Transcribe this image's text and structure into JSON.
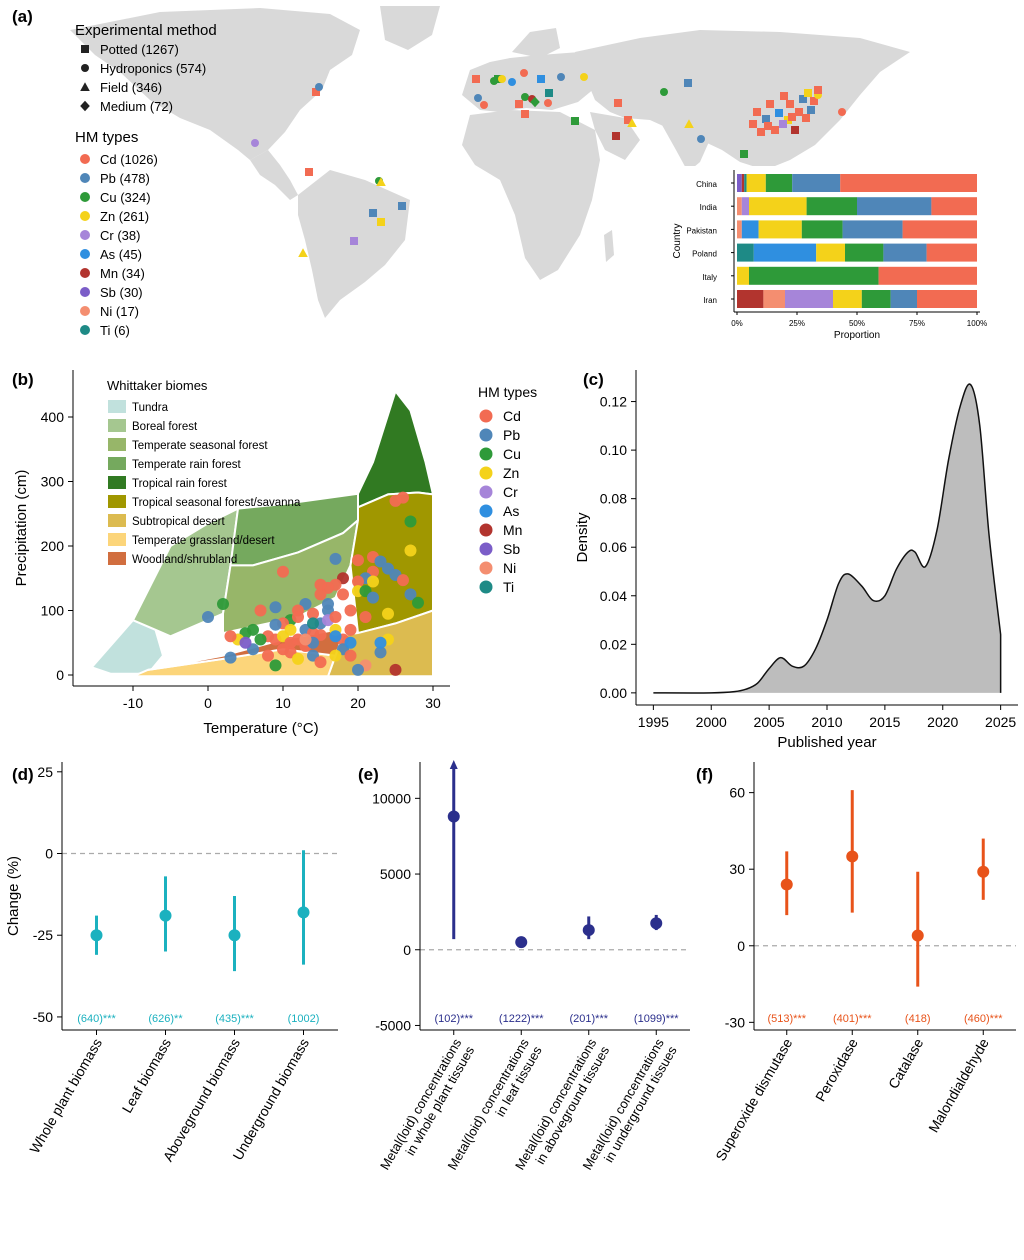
{
  "panels": {
    "a": "(a)",
    "b": "(b)",
    "c": "(c)",
    "d": "(d)",
    "e": "(e)",
    "f": "(f)"
  },
  "colors": {
    "Cd": "#F26B52",
    "Pb": "#4F86B8",
    "Cu": "#2E9A39",
    "Zn": "#F4D21A",
    "Cr": "#A685D9",
    "As": "#2F8FE0",
    "Mn": "#B2342E",
    "Sb": "#7B5DC8",
    "Ni": "#F48E70",
    "Ti": "#1E8A86",
    "land": "#d9d9d9",
    "teal": "#1BB1BF",
    "navy": "#2B2F8C",
    "orange": "#E8531A"
  },
  "map_legend": {
    "method_title": "Experimental method",
    "methods": [
      {
        "label": "Potted (1267)",
        "shape": "square"
      },
      {
        "label": "Hydroponics (574)",
        "shape": "circle"
      },
      {
        "label": "Field (346)",
        "shape": "triangle"
      },
      {
        "label": "Medium (72)",
        "shape": "diamond"
      }
    ],
    "hm_title": "HM types",
    "hm": [
      {
        "label": "Cd (1026)",
        "key": "Cd"
      },
      {
        "label": "Pb (478)",
        "key": "Pb"
      },
      {
        "label": "Cu (324)",
        "key": "Cu"
      },
      {
        "label": "Zn (261)",
        "key": "Zn"
      },
      {
        "label": "Cr (38)",
        "key": "Cr"
      },
      {
        "label": "As (45)",
        "key": "As"
      },
      {
        "label": "Mn (34)",
        "key": "Mn"
      },
      {
        "label": "Sb (30)",
        "key": "Sb"
      },
      {
        "label": "Ni (17)",
        "key": "Ni"
      },
      {
        "label": "Ti (6)",
        "key": "Ti"
      }
    ]
  },
  "biome_legend": {
    "title": "Whittaker biomes",
    "items": [
      {
        "label": "Tundra",
        "color": "#C1E1DD"
      },
      {
        "label": "Boreal forest",
        "color": "#A5C790"
      },
      {
        "label": "Temperate seasonal forest",
        "color": "#97B669"
      },
      {
        "label": "Temperate rain forest",
        "color": "#75A95E"
      },
      {
        "label": "Tropical rain forest",
        "color": "#317A22"
      },
      {
        "label": "Tropical seasonal forest/savanna",
        "color": "#A09700"
      },
      {
        "label": "Subtropical desert",
        "color": "#DCBB50"
      },
      {
        "label": "Temperate grassland/desert",
        "color": "#FCD57A"
      },
      {
        "label": "Woodland/shrubland",
        "color": "#D16E3F"
      }
    ]
  },
  "hm_legend_b": {
    "title": "HM types",
    "keys": [
      "Cd",
      "Pb",
      "Cu",
      "Zn",
      "Cr",
      "As",
      "Mn",
      "Sb",
      "Ni",
      "Ti"
    ]
  },
  "chart_data": [
    {
      "id": "a-inset",
      "type": "bar",
      "orientation": "horizontal-stacked",
      "xlabel": "Proportion",
      "ylabel": "Country",
      "xticks": [
        "0%",
        "25%",
        "50%",
        "75%",
        "100%"
      ],
      "categories": [
        "China",
        "India",
        "Pakistan",
        "Poland",
        "Italy",
        "Iran"
      ],
      "series": [
        {
          "name": "Sb",
          "values": [
            0.02,
            0,
            0,
            0,
            0,
            0
          ]
        },
        {
          "name": "Mn",
          "values": [
            0.01,
            0,
            0,
            0,
            0,
            0.11
          ]
        },
        {
          "name": "Ni",
          "values": [
            0,
            0.02,
            0.02,
            0,
            0,
            0.09
          ]
        },
        {
          "name": "Cr",
          "values": [
            0,
            0.03,
            0,
            0,
            0,
            0.2
          ]
        },
        {
          "name": "Ti",
          "values": [
            0.01,
            0,
            0,
            0.07,
            0,
            0
          ]
        },
        {
          "name": "As",
          "values": [
            0,
            0,
            0.07,
            0.26,
            0,
            0
          ]
        },
        {
          "name": "Zn",
          "values": [
            0.08,
            0.24,
            0.18,
            0.12,
            0.05,
            0.12
          ]
        },
        {
          "name": "Cu",
          "values": [
            0.11,
            0.21,
            0.17,
            0.16,
            0.54,
            0.12
          ]
        },
        {
          "name": "Pb",
          "values": [
            0.2,
            0.31,
            0.25,
            0.18,
            0,
            0.11
          ]
        },
        {
          "name": "Cd",
          "values": [
            0.57,
            0.19,
            0.31,
            0.21,
            0.41,
            0.25
          ]
        }
      ]
    },
    {
      "id": "b",
      "type": "scatter",
      "xlabel": "Temperature (°C)",
      "ylabel": "Precipitation (cm)",
      "xlim": [
        -16,
        30
      ],
      "ylim": [
        -5,
        440
      ],
      "xticks": [
        -10,
        0,
        10,
        20,
        30
      ],
      "yticks": [
        0,
        100,
        200,
        300,
        400
      ],
      "points": [
        [
          25,
          270,
          "Cd"
        ],
        [
          26,
          275,
          "Cd"
        ],
        [
          27,
          238,
          "Cu"
        ],
        [
          27,
          193,
          "Zn"
        ],
        [
          22,
          183,
          "Cd"
        ],
        [
          23,
          176,
          "Pb"
        ],
        [
          24,
          165,
          "Pb"
        ],
        [
          25,
          155,
          "Pb"
        ],
        [
          26,
          147,
          "Cd"
        ],
        [
          27,
          125,
          "Pb"
        ],
        [
          28,
          112,
          "Cu"
        ],
        [
          22,
          160,
          "Cd"
        ],
        [
          21,
          150,
          "Pb"
        ],
        [
          20,
          145,
          "Cd"
        ],
        [
          22,
          145,
          "Zn"
        ],
        [
          20,
          130,
          "Zn"
        ],
        [
          18,
          150,
          "Mn"
        ],
        [
          17,
          140,
          "Cd"
        ],
        [
          16,
          135,
          "Cd"
        ],
        [
          15,
          125,
          "Cd"
        ],
        [
          16,
          100,
          "Pb"
        ],
        [
          14,
          95,
          "Cd"
        ],
        [
          13,
          110,
          "Pb"
        ],
        [
          12,
          100,
          "Cd"
        ],
        [
          11,
          85,
          "Cu"
        ],
        [
          10,
          80,
          "Cd"
        ],
        [
          9,
          78,
          "Pb"
        ],
        [
          8,
          60,
          "Cd"
        ],
        [
          9,
          55,
          "Cd"
        ],
        [
          10,
          60,
          "Zn"
        ],
        [
          11,
          50,
          "Cd"
        ],
        [
          12,
          55,
          "Cd"
        ],
        [
          13,
          70,
          "Pb"
        ],
        [
          14,
          65,
          "Cd"
        ],
        [
          15,
          62,
          "Cd"
        ],
        [
          15,
          80,
          "Pb"
        ],
        [
          16,
          85,
          "Cr"
        ],
        [
          17,
          70,
          "Zn"
        ],
        [
          17,
          90,
          "Cd"
        ],
        [
          18,
          55,
          "Cd"
        ],
        [
          18,
          40,
          "Pb"
        ],
        [
          7,
          55,
          "Cu"
        ],
        [
          6,
          70,
          "Cu"
        ],
        [
          5,
          65,
          "Cu"
        ],
        [
          4,
          55,
          "Zn"
        ],
        [
          3,
          60,
          "Cd"
        ],
        [
          2,
          110,
          "Cu"
        ],
        [
          0,
          90,
          "Pb"
        ],
        [
          3,
          27,
          "Pb"
        ],
        [
          9,
          15,
          "Cu"
        ],
        [
          11,
          35,
          "Cd"
        ],
        [
          12,
          25,
          "Zn"
        ],
        [
          14,
          30,
          "Pb"
        ],
        [
          15,
          20,
          "Cd"
        ],
        [
          17,
          30,
          "Zn"
        ],
        [
          19,
          30,
          "Cd"
        ],
        [
          19,
          50,
          "As"
        ],
        [
          21,
          15,
          "Ni"
        ],
        [
          20,
          8,
          "Pb"
        ],
        [
          23,
          35,
          "Pb"
        ],
        [
          24,
          55,
          "Zn"
        ],
        [
          23,
          50,
          "As"
        ],
        [
          24,
          95,
          "Zn"
        ],
        [
          21,
          90,
          "Cd"
        ],
        [
          10,
          160,
          "Cd"
        ],
        [
          17,
          180,
          "Pb"
        ],
        [
          18,
          125,
          "Cd"
        ],
        [
          15,
          140,
          "Cd"
        ],
        [
          25,
          8,
          "Mn"
        ],
        [
          7,
          100,
          "Cd"
        ],
        [
          6,
          40,
          "Pb"
        ],
        [
          8,
          30,
          "Cd"
        ],
        [
          11,
          70,
          "Zn"
        ],
        [
          12,
          90,
          "Cd"
        ],
        [
          13,
          45,
          "Cd"
        ],
        [
          14,
          50,
          "Pb"
        ],
        [
          10,
          40,
          "Cd"
        ],
        [
          9,
          105,
          "Pb"
        ],
        [
          19,
          70,
          "Cd"
        ],
        [
          16,
          110,
          "Pb"
        ],
        [
          20,
          178,
          "Cd"
        ],
        [
          21,
          130,
          "Cu"
        ],
        [
          22,
          120,
          "Pb"
        ],
        [
          19,
          100,
          "Cd"
        ],
        [
          13,
          55,
          "Ni"
        ],
        [
          17,
          60,
          "As"
        ],
        [
          5,
          50,
          "Sb"
        ],
        [
          14,
          80,
          "Ti"
        ]
      ]
    },
    {
      "id": "c",
      "type": "area",
      "xlabel": "Published year",
      "ylabel": "Density",
      "xlim": [
        1993.5,
        2026.5
      ],
      "ylim": [
        -0.005,
        0.133
      ],
      "xticks": [
        1995,
        2000,
        2005,
        2010,
        2015,
        2020,
        2025
      ],
      "yticks": [
        "0.00",
        "0.02",
        "0.04",
        "0.06",
        "0.08",
        "0.10",
        "0.12"
      ],
      "x": [
        1995,
        2000,
        2002,
        2003,
        2004,
        2005,
        2006,
        2007,
        2008,
        2009,
        2010,
        2011,
        2011.8,
        2013,
        2014,
        2015,
        2016,
        2017,
        2017.6,
        2018.5,
        2019.5,
        2020.5,
        2021.5,
        2022.4,
        2023.2,
        2024,
        2025
      ],
      "y": [
        0,
        0,
        0.0005,
        0.0015,
        0.004,
        0.01,
        0.0145,
        0.011,
        0.011,
        0.018,
        0.03,
        0.045,
        0.049,
        0.044,
        0.038,
        0.04,
        0.051,
        0.058,
        0.058,
        0.052,
        0.067,
        0.096,
        0.118,
        0.127,
        0.11,
        0.065,
        0.024
      ]
    },
    {
      "id": "d",
      "type": "scatter",
      "subtype": "point-range",
      "ylabel": "Change (%)",
      "ylim": [
        -54,
        28
      ],
      "yticks": [
        -50,
        -25,
        0,
        25
      ],
      "categories": [
        "Whole plant biomass",
        "Leaf biomass",
        "Aboveground biomass",
        "Underground biomass"
      ],
      "mean": [
        -25,
        -19,
        -25,
        -18
      ],
      "low": [
        -31,
        -30,
        -36,
        -34
      ],
      "high": [
        -19,
        -7,
        -13,
        1
      ],
      "counts": [
        "(640)***",
        "(626)**",
        "(435)***",
        "(1002)"
      ],
      "arrow_up": [
        false,
        false,
        false,
        false
      ]
    },
    {
      "id": "e",
      "type": "scatter",
      "subtype": "point-range",
      "ylabel": "",
      "ylim": [
        -5300,
        12400
      ],
      "yticks": [
        -5000,
        0,
        5000,
        10000
      ],
      "categories": [
        "Metal(loid) concentrations in whole plant tissues",
        "Metal(loid) concentrations in leaf tissues",
        "Metal(loid) concentrations in aboveground tissues",
        "Metal(loid) concentrations in underground tissues"
      ],
      "mean": [
        8800,
        500,
        1300,
        1750
      ],
      "low": [
        700,
        350,
        700,
        1300
      ],
      "high": [
        12000,
        650,
        2200,
        2300
      ],
      "counts": [
        "(102)***",
        "(1222)***",
        "(201)***",
        "(1099)***"
      ],
      "arrow_up": [
        true,
        false,
        false,
        false
      ]
    },
    {
      "id": "f",
      "type": "scatter",
      "subtype": "point-range",
      "ylabel": "",
      "ylim": [
        -33,
        72
      ],
      "yticks": [
        -30,
        0,
        30,
        60
      ],
      "categories": [
        "Superoxide dismutase",
        "Peroxidase",
        "Catalase",
        "Malondialdehyde"
      ],
      "mean": [
        24,
        35,
        4,
        29
      ],
      "low": [
        12,
        13,
        -16,
        18
      ],
      "high": [
        37,
        61,
        29,
        42
      ],
      "counts": [
        "(513)***",
        "(401)***",
        "(418)",
        "(460)***"
      ],
      "arrow_up": [
        false,
        false,
        false,
        false
      ]
    }
  ]
}
